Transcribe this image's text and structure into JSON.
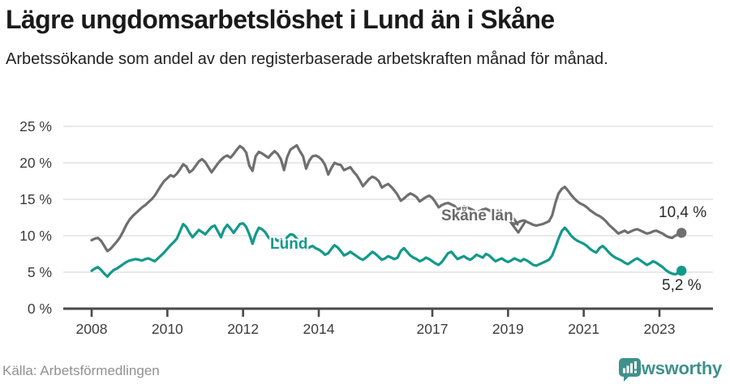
{
  "header": {
    "title": "Lägre ungdomsarbetslöshet i Lund än i Skåne",
    "subtitle": "Arbetssökande som andel av den registerbaserade arbetskraften månad för månad."
  },
  "footer": {
    "source": "Källa: Arbetsförmedlingen",
    "brand": "Newsworthy"
  },
  "chart_data": {
    "type": "line",
    "title": "Lägre ungdomsarbetslöshet i Lund än i Skåne",
    "unit": "%",
    "frequency": "monthly",
    "start": "2008-01",
    "end": "2023-08",
    "ylim": [
      0,
      25
    ],
    "grid": "horizontal",
    "legend_position": "inline-labels",
    "y_ticks": [
      {
        "value": 25,
        "label": "25 %"
      },
      {
        "value": 20,
        "label": "20 %"
      },
      {
        "value": 15,
        "label": "15 %"
      },
      {
        "value": 10,
        "label": "10 %"
      },
      {
        "value": 5,
        "label": "5 %"
      },
      {
        "value": 0,
        "label": "0 %"
      }
    ],
    "x_ticks": [
      {
        "value": 2008,
        "label": "2008"
      },
      {
        "value": 2010,
        "label": "2010"
      },
      {
        "value": 2012,
        "label": "2012"
      },
      {
        "value": 2014,
        "label": "2014"
      },
      {
        "value": 2017,
        "label": "2017"
      },
      {
        "value": 2019,
        "label": "2019"
      },
      {
        "value": 2021,
        "label": "2021"
      },
      {
        "value": 2023,
        "label": "2023"
      }
    ],
    "series": [
      {
        "name": "Skåne län",
        "color": "#6f6f6f",
        "end_label": "10,4 %",
        "values": [
          9.4,
          9.6,
          9.7,
          9.3,
          8.6,
          7.9,
          8.2,
          8.7,
          9.2,
          9.8,
          10.6,
          11.5,
          12.2,
          12.7,
          13.1,
          13.5,
          13.9,
          14.2,
          14.6,
          15.0,
          15.5,
          16.2,
          16.9,
          17.5,
          17.9,
          18.3,
          18.1,
          18.5,
          19.1,
          19.8,
          19.5,
          18.7,
          19.0,
          19.6,
          20.2,
          20.5,
          20.1,
          19.4,
          18.7,
          19.3,
          19.9,
          20.4,
          20.8,
          21.0,
          20.7,
          21.2,
          21.8,
          22.3,
          22.0,
          21.4,
          19.6,
          18.9,
          20.9,
          21.5,
          21.3,
          21.0,
          20.7,
          21.2,
          21.6,
          21.2,
          20.5,
          19.0,
          20.8,
          21.8,
          22.1,
          22.4,
          21.6,
          20.9,
          19.2,
          20.3,
          20.9,
          21.0,
          20.8,
          20.4,
          19.7,
          18.4,
          19.3,
          20.0,
          19.8,
          19.7,
          19.0,
          19.2,
          19.4,
          18.8,
          18.3,
          17.6,
          16.8,
          17.3,
          17.8,
          18.1,
          17.9,
          17.5,
          16.6,
          16.9,
          17.1,
          16.7,
          16.2,
          15.6,
          14.8,
          15.1,
          15.5,
          15.8,
          15.6,
          15.3,
          14.7,
          15.0,
          15.3,
          15.5,
          15.2,
          14.6,
          13.9,
          14.2,
          14.4,
          14.5,
          14.3,
          14.1,
          13.6,
          13.8,
          14.0,
          13.9,
          13.7,
          13.5,
          13.2,
          13.4,
          13.6,
          13.7,
          13.5,
          13.2,
          12.8,
          12.6,
          12.4,
          12.2,
          12.1,
          11.9,
          11.6,
          11.8,
          12.0,
          12.1,
          11.9,
          11.7,
          11.5,
          11.4,
          11.5,
          11.6,
          11.8,
          12.0,
          12.8,
          14.5,
          15.8,
          16.4,
          16.7,
          16.2,
          15.6,
          15.1,
          14.7,
          14.4,
          14.2,
          13.9,
          13.5,
          13.2,
          12.9,
          12.7,
          12.4,
          12.0,
          11.5,
          11.1,
          10.7,
          10.3,
          10.5,
          10.7,
          10.4,
          10.6,
          10.8,
          10.9,
          10.7,
          10.5,
          10.3,
          10.4,
          10.6,
          10.7,
          10.5,
          10.3,
          10.0,
          9.8,
          9.7,
          10.0,
          10.2,
          10.4
        ]
      },
      {
        "name": "Lund",
        "color": "#13998b",
        "end_label": "5,2 %",
        "values": [
          5.2,
          5.5,
          5.7,
          5.3,
          4.8,
          4.4,
          4.9,
          5.3,
          5.5,
          5.8,
          6.1,
          6.4,
          6.6,
          6.7,
          6.8,
          6.7,
          6.6,
          6.8,
          6.9,
          6.7,
          6.5,
          6.9,
          7.3,
          7.7,
          8.2,
          8.7,
          9.1,
          9.6,
          10.6,
          11.6,
          11.2,
          10.4,
          9.8,
          10.3,
          10.8,
          10.5,
          10.2,
          10.7,
          11.2,
          11.4,
          10.6,
          9.8,
          10.9,
          11.5,
          11.0,
          10.4,
          11.0,
          11.6,
          11.7,
          11.2,
          10.2,
          8.9,
          10.2,
          11.1,
          10.9,
          10.5,
          9.8,
          9.4,
          9.6,
          9.3,
          9.5,
          9.2,
          9.8,
          10.2,
          10.1,
          9.6,
          9.0,
          8.6,
          8.2,
          8.4,
          8.6,
          8.3,
          8.1,
          7.8,
          7.4,
          7.6,
          8.2,
          8.7,
          8.4,
          7.9,
          7.3,
          7.5,
          7.8,
          7.5,
          7.2,
          6.9,
          6.7,
          7.0,
          7.4,
          7.8,
          7.5,
          7.1,
          6.7,
          6.9,
          7.2,
          7.0,
          6.8,
          7.0,
          7.9,
          8.3,
          7.8,
          7.3,
          7.0,
          6.8,
          6.5,
          6.7,
          7.0,
          6.8,
          6.5,
          6.2,
          6.0,
          6.4,
          7.0,
          7.6,
          7.8,
          7.3,
          6.8,
          7.0,
          7.2,
          6.9,
          6.7,
          7.0,
          7.4,
          7.2,
          7.0,
          7.5,
          7.3,
          6.9,
          6.5,
          6.7,
          6.9,
          6.6,
          6.4,
          6.6,
          6.9,
          6.7,
          6.5,
          6.8,
          6.6,
          6.3,
          6.0,
          5.9,
          6.1,
          6.3,
          6.5,
          6.7,
          7.3,
          8.4,
          9.6,
          10.6,
          11.1,
          10.6,
          10.0,
          9.6,
          9.3,
          9.1,
          8.9,
          8.6,
          8.2,
          7.9,
          7.7,
          8.3,
          8.6,
          8.2,
          7.7,
          7.3,
          7.0,
          6.8,
          6.6,
          6.3,
          6.1,
          6.4,
          6.7,
          6.9,
          6.6,
          6.3,
          6.0,
          6.2,
          6.5,
          6.3,
          6.0,
          5.7,
          5.3,
          5.0,
          4.8,
          4.7,
          4.9,
          5.2
        ]
      }
    ]
  }
}
